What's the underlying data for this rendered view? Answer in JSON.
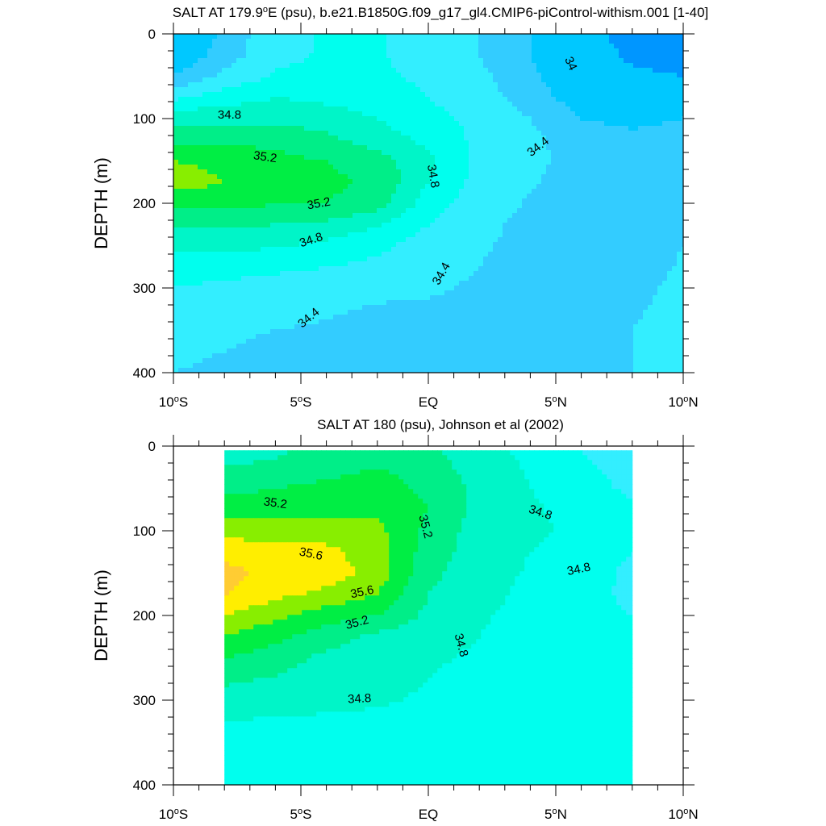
{
  "figure": {
    "background": "#ffffff",
    "colormap": [
      {
        "level": 33.6,
        "color": "#0096ff"
      },
      {
        "level": 33.8,
        "color": "#00c8ff"
      },
      {
        "level": 34.0,
        "color": "#00c8ff"
      },
      {
        "level": 34.2,
        "color": "#33ccff"
      },
      {
        "level": 34.4,
        "color": "#33eeff"
      },
      {
        "level": 34.6,
        "color": "#00ffee"
      },
      {
        "level": 34.8,
        "color": "#00f5c8"
      },
      {
        "level": 35.0,
        "color": "#00ee88"
      },
      {
        "level": 35.2,
        "color": "#00ee44"
      },
      {
        "level": 35.4,
        "color": "#88ee00"
      },
      {
        "level": 35.6,
        "color": "#ffee00"
      },
      {
        "level": 35.8,
        "color": "#ffcc33"
      }
    ]
  },
  "chart_data": [
    {
      "type": "heatmap",
      "subtype": "filled-contour",
      "title": "SALT AT 179.9°E (psu), b.e21.B1850G.f09_g17_gl4.CMIP6-piControl-withism.001 [1-40]",
      "title_parts": {
        "pre": "SALT AT 179.9",
        "sup": "o",
        "post": "E (psu), b.e21.B1850G.f09_g17_gl4.CMIP6-piControl-withism.001 [1-40]"
      },
      "xlabel": "",
      "ylabel": "DEPTH (m)",
      "xlim": [
        -10,
        10
      ],
      "ylim": [
        400,
        0
      ],
      "y_inverted": true,
      "x_ticks": [
        {
          "value": -10,
          "pre": "10",
          "sup": "o",
          "post": "S"
        },
        {
          "value": -5,
          "pre": "5",
          "sup": "o",
          "post": "S"
        },
        {
          "value": 0,
          "pre": "EQ",
          "sup": "",
          "post": ""
        },
        {
          "value": 5,
          "pre": "5",
          "sup": "o",
          "post": "N"
        },
        {
          "value": 10,
          "pre": "10",
          "sup": "o",
          "post": "N"
        }
      ],
      "y_ticks": [
        "0",
        "100",
        "200",
        "300",
        "400"
      ],
      "y_tick_values": [
        0,
        100,
        200,
        300,
        400
      ],
      "data_extent": {
        "x": [
          -10,
          10
        ],
        "y": [
          0,
          400
        ]
      },
      "contour_interval": 0.2,
      "units": "psu",
      "contour_labels": [
        {
          "text": "34.8",
          "x": -7.8,
          "y": 95,
          "angle": 0
        },
        {
          "text": "35.2",
          "x": -6.4,
          "y": 145,
          "angle": 8
        },
        {
          "text": "35.2",
          "x": -4.3,
          "y": 200,
          "angle": -10
        },
        {
          "text": "34.8",
          "x": -4.6,
          "y": 243,
          "angle": -18
        },
        {
          "text": "34.4",
          "x": -4.7,
          "y": 335,
          "angle": -40
        },
        {
          "text": "34.8",
          "x": 0.2,
          "y": 168,
          "angle": 80
        },
        {
          "text": "34.4",
          "x": 0.5,
          "y": 283,
          "angle": -60
        },
        {
          "text": "34.4",
          "x": 4.3,
          "y": 133,
          "angle": -38
        },
        {
          "text": "34",
          "x": 5.6,
          "y": 35,
          "angle": 65
        }
      ],
      "salinity_grid": {
        "x": [
          -10,
          -8,
          -6,
          -4,
          -2,
          0,
          2,
          4,
          6,
          8,
          10
        ],
        "depth": [
          0,
          25,
          50,
          75,
          100,
          125,
          150,
          175,
          200,
          225,
          250,
          275,
          300,
          325,
          350,
          375,
          400
        ],
        "values": [
          [
            33.95,
            34.25,
            34.55,
            34.62,
            34.62,
            34.5,
            34.4,
            34.2,
            33.9,
            33.7,
            33.65
          ],
          [
            34.0,
            34.3,
            34.55,
            34.62,
            34.62,
            34.5,
            34.4,
            34.2,
            33.95,
            33.75,
            33.7
          ],
          [
            34.2,
            34.45,
            34.62,
            34.65,
            34.65,
            34.55,
            34.45,
            34.25,
            34.0,
            33.85,
            33.8
          ],
          [
            34.55,
            34.7,
            34.8,
            34.75,
            34.7,
            34.6,
            34.5,
            34.3,
            34.1,
            34.0,
            34.0
          ],
          [
            34.95,
            34.95,
            34.95,
            34.9,
            34.8,
            34.65,
            34.55,
            34.4,
            34.2,
            34.15,
            34.2
          ],
          [
            35.15,
            35.15,
            35.15,
            35.05,
            34.9,
            34.75,
            34.55,
            34.45,
            34.3,
            34.25,
            34.3
          ],
          [
            35.4,
            35.35,
            35.25,
            35.2,
            35.1,
            34.85,
            34.55,
            34.45,
            34.32,
            34.3,
            34.35
          ],
          [
            35.5,
            35.4,
            35.3,
            35.25,
            35.15,
            34.8,
            34.52,
            34.42,
            34.32,
            34.3,
            34.35
          ],
          [
            35.25,
            35.25,
            35.22,
            35.2,
            35.1,
            34.7,
            34.5,
            34.38,
            34.3,
            34.3,
            34.35
          ],
          [
            35.05,
            35.05,
            35.0,
            34.95,
            34.82,
            34.6,
            34.45,
            34.35,
            34.28,
            34.3,
            34.38
          ],
          [
            34.85,
            34.85,
            34.82,
            34.75,
            34.65,
            34.5,
            34.42,
            34.35,
            34.26,
            34.3,
            34.4
          ],
          [
            34.7,
            34.7,
            34.65,
            34.6,
            34.55,
            34.45,
            34.4,
            34.33,
            34.26,
            34.32,
            34.42
          ],
          [
            34.6,
            34.55,
            34.5,
            34.5,
            34.45,
            34.42,
            34.38,
            34.33,
            34.28,
            34.35,
            34.45
          ],
          [
            34.5,
            34.48,
            34.45,
            34.42,
            34.38,
            34.38,
            34.37,
            34.35,
            34.32,
            34.38,
            34.45
          ],
          [
            34.45,
            34.42,
            34.4,
            34.38,
            34.35,
            34.36,
            34.36,
            34.35,
            34.35,
            34.4,
            34.45
          ],
          [
            34.42,
            34.4,
            34.37,
            34.35,
            34.33,
            34.34,
            34.35,
            34.35,
            34.36,
            34.4,
            34.45
          ],
          [
            34.4,
            34.38,
            34.35,
            34.33,
            34.32,
            34.33,
            34.34,
            34.35,
            34.37,
            34.4,
            34.45
          ]
        ]
      }
    },
    {
      "type": "heatmap",
      "subtype": "filled-contour",
      "title": "SALT AT 180 (psu), Johnson et al (2002)",
      "title_parts": {
        "pre": "SALT AT 180 (psu), Johnson et al (2002)",
        "sup": "",
        "post": ""
      },
      "xlabel": "",
      "ylabel": "DEPTH (m)",
      "xlim": [
        -10,
        10
      ],
      "ylim": [
        400,
        0
      ],
      "y_inverted": true,
      "x_ticks": [
        {
          "value": -10,
          "pre": "10",
          "sup": "o",
          "post": "S"
        },
        {
          "value": -5,
          "pre": "5",
          "sup": "o",
          "post": "S"
        },
        {
          "value": 0,
          "pre": "EQ",
          "sup": "",
          "post": ""
        },
        {
          "value": 5,
          "pre": "5",
          "sup": "o",
          "post": "N"
        },
        {
          "value": 10,
          "pre": "10",
          "sup": "o",
          "post": "N"
        }
      ],
      "y_ticks": [
        "0",
        "100",
        "200",
        "300",
        "400"
      ],
      "y_tick_values": [
        0,
        100,
        200,
        300,
        400
      ],
      "data_extent": {
        "x": [
          -8,
          8
        ],
        "y": [
          5,
          400
        ]
      },
      "contour_interval": 0.2,
      "units": "psu",
      "contour_labels": [
        {
          "text": "35.2",
          "x": -6.0,
          "y": 67,
          "angle": 8
        },
        {
          "text": "35.6",
          "x": -4.6,
          "y": 127,
          "angle": 12
        },
        {
          "text": "35.6",
          "x": -2.6,
          "y": 172,
          "angle": -12
        },
        {
          "text": "35.2",
          "x": -2.8,
          "y": 208,
          "angle": -15
        },
        {
          "text": "35.2",
          "x": -0.1,
          "y": 95,
          "angle": 75
        },
        {
          "text": "34.8",
          "x": 1.3,
          "y": 235,
          "angle": 75
        },
        {
          "text": "34.8",
          "x": -2.7,
          "y": 298,
          "angle": -3
        },
        {
          "text": "34.8",
          "x": 4.4,
          "y": 78,
          "angle": 18
        },
        {
          "text": "34.8",
          "x": 5.9,
          "y": 145,
          "angle": -12
        }
      ],
      "salinity_grid": {
        "x": [
          -8,
          -6,
          -4,
          -2,
          0,
          2,
          4,
          6,
          8
        ],
        "depth": [
          5,
          25,
          50,
          75,
          100,
          125,
          150,
          175,
          200,
          225,
          250,
          275,
          300,
          325,
          350,
          375,
          400
        ],
        "values": [
          [
            34.9,
            34.95,
            35.1,
            35.15,
            35.05,
            34.85,
            34.75,
            34.6,
            34.45
          ],
          [
            35.0,
            35.05,
            35.12,
            35.2,
            35.1,
            34.9,
            34.78,
            34.65,
            34.5
          ],
          [
            35.15,
            35.2,
            35.25,
            35.3,
            35.15,
            34.95,
            34.8,
            34.7,
            34.55
          ],
          [
            35.3,
            35.3,
            35.35,
            35.35,
            35.2,
            34.95,
            34.82,
            34.75,
            34.65
          ],
          [
            35.5,
            35.5,
            35.5,
            35.45,
            35.15,
            34.9,
            34.82,
            34.78,
            34.72
          ],
          [
            35.75,
            35.7,
            35.65,
            35.5,
            35.1,
            34.9,
            34.8,
            34.75,
            34.6
          ],
          [
            35.85,
            35.75,
            35.7,
            35.52,
            35.05,
            34.88,
            34.78,
            34.7,
            34.55
          ],
          [
            35.82,
            35.65,
            35.55,
            35.4,
            35.0,
            34.85,
            34.76,
            34.68,
            34.55
          ],
          [
            35.6,
            35.45,
            35.3,
            35.2,
            34.95,
            34.82,
            34.75,
            34.68,
            34.6
          ],
          [
            35.4,
            35.25,
            35.1,
            34.95,
            34.85,
            34.8,
            34.74,
            34.7,
            34.68
          ],
          [
            35.2,
            35.1,
            34.95,
            34.88,
            34.82,
            34.78,
            34.74,
            34.72,
            34.7
          ],
          [
            35.05,
            34.98,
            34.9,
            34.85,
            34.8,
            34.76,
            34.73,
            34.72,
            34.7
          ],
          [
            34.9,
            34.88,
            34.85,
            34.82,
            34.78,
            34.75,
            34.73,
            34.72,
            34.7
          ],
          [
            34.8,
            34.78,
            34.77,
            34.76,
            34.75,
            34.74,
            34.72,
            34.71,
            34.7
          ],
          [
            34.75,
            34.75,
            34.74,
            34.74,
            34.73,
            34.72,
            34.71,
            34.7,
            34.7
          ],
          [
            34.74,
            34.74,
            34.73,
            34.73,
            34.72,
            34.71,
            34.7,
            34.7,
            34.7
          ],
          [
            34.73,
            34.73,
            34.72,
            34.72,
            34.71,
            34.71,
            34.7,
            34.7,
            34.7
          ]
        ]
      }
    }
  ]
}
